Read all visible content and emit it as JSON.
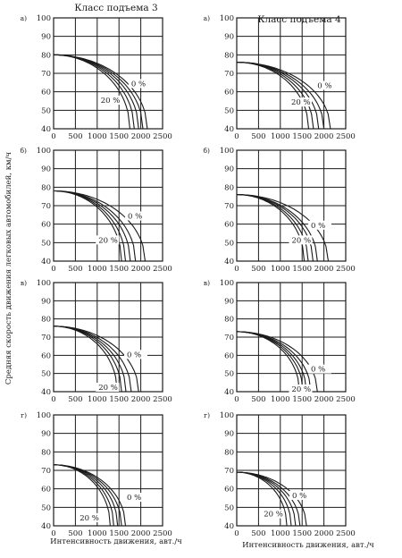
{
  "figure": {
    "col_titles": [
      "Класс подъема 3",
      "Класс подъема 4"
    ],
    "y_axis_label": "Средняя скорость движения легковых автомобилей, км/ч",
    "x_axis_label": "Интенсивность движения, авт./ч",
    "ink_color": "#1a1a1a",
    "background": "#ffffff"
  },
  "chart_data": [
    {
      "type": "line",
      "panel_label": "а)",
      "title": "Класс подъема 3",
      "xlim": [
        0,
        2500
      ],
      "ylim": [
        40,
        100
      ],
      "x_ticks": [
        0,
        500,
        1000,
        1500,
        2000,
        2500
      ],
      "y_ticks": [
        40,
        50,
        60,
        70,
        80,
        90,
        100
      ],
      "grid": true,
      "annotations": [
        {
          "text": "0 %",
          "x": 1780,
          "y": 63
        },
        {
          "text": "20 %",
          "x": 1080,
          "y": 54
        }
      ],
      "series": [
        {
          "v0": 80,
          "x_end": 2150
        },
        {
          "v0": 80,
          "x_end": 2050
        },
        {
          "v0": 80,
          "x_end": 1950
        },
        {
          "v0": 80,
          "x_end": 1850
        },
        {
          "v0": 80,
          "x_end": 1750
        }
      ]
    },
    {
      "type": "line",
      "panel_label": "а)",
      "title": "Класс подъема 4",
      "xlim": [
        0,
        2500
      ],
      "ylim": [
        40,
        100
      ],
      "x_ticks": [
        0,
        500,
        1000,
        1500,
        2000,
        2500
      ],
      "y_ticks": [
        40,
        50,
        60,
        70,
        80,
        90,
        100
      ],
      "grid": true,
      "annotations": [
        {
          "text": "0 %",
          "x": 1850,
          "y": 62
        },
        {
          "text": "20 %",
          "x": 1250,
          "y": 53
        }
      ],
      "series": [
        {
          "v0": 76,
          "x_end": 2150
        },
        {
          "v0": 76,
          "x_end": 2000
        },
        {
          "v0": 76,
          "x_end": 1880
        },
        {
          "v0": 76,
          "x_end": 1760
        },
        {
          "v0": 76,
          "x_end": 1650
        }
      ]
    },
    {
      "type": "line",
      "panel_label": "б)",
      "xlim": [
        0,
        2500
      ],
      "ylim": [
        40,
        100
      ],
      "x_ticks": [
        0,
        500,
        1000,
        1500,
        2000,
        2500
      ],
      "y_ticks": [
        40,
        50,
        60,
        70,
        80,
        90,
        100
      ],
      "grid": true,
      "annotations": [
        {
          "text": "0 %",
          "x": 1700,
          "y": 63
        },
        {
          "text": "20 %",
          "x": 1030,
          "y": 50
        }
      ],
      "series": [
        {
          "v0": 78,
          "x_end": 2100
        },
        {
          "v0": 78,
          "x_end": 1880
        },
        {
          "v0": 78,
          "x_end": 1760
        },
        {
          "v0": 78,
          "x_end": 1650
        },
        {
          "v0": 78,
          "x_end": 1560
        }
      ]
    },
    {
      "type": "line",
      "panel_label": "б)",
      "xlim": [
        0,
        2500
      ],
      "ylim": [
        40,
        100
      ],
      "x_ticks": [
        0,
        500,
        1000,
        1500,
        2000,
        2500
      ],
      "y_ticks": [
        40,
        50,
        60,
        70,
        80,
        90,
        100
      ],
      "grid": true,
      "annotations": [
        {
          "text": "0 %",
          "x": 1700,
          "y": 58
        },
        {
          "text": "20 %",
          "x": 1260,
          "y": 50
        }
      ],
      "series": [
        {
          "v0": 76,
          "x_end": 2100
        },
        {
          "v0": 76,
          "x_end": 1850
        },
        {
          "v0": 76,
          "x_end": 1750
        },
        {
          "v0": 76,
          "x_end": 1640
        },
        {
          "v0": 76,
          "x_end": 1550
        }
      ]
    },
    {
      "type": "line",
      "panel_label": "в)",
      "xlim": [
        0,
        2500
      ],
      "ylim": [
        40,
        100
      ],
      "x_ticks": [
        0,
        500,
        1000,
        1500,
        2000,
        2500
      ],
      "y_ticks": [
        40,
        50,
        60,
        70,
        80,
        90,
        100
      ],
      "grid": true,
      "annotations": [
        {
          "text": "0 %",
          "x": 1680,
          "y": 59
        },
        {
          "text": "20 %",
          "x": 1030,
          "y": 41
        }
      ],
      "series": [
        {
          "v0": 76,
          "x_end": 1950
        },
        {
          "v0": 76,
          "x_end": 1780
        },
        {
          "v0": 76,
          "x_end": 1660
        },
        {
          "v0": 76,
          "x_end": 1560
        },
        {
          "v0": 76,
          "x_end": 1460
        }
      ]
    },
    {
      "type": "line",
      "panel_label": "в)",
      "xlim": [
        0,
        2500
      ],
      "ylim": [
        40,
        100
      ],
      "x_ticks": [
        0,
        500,
        1000,
        1500,
        2000,
        2500
      ],
      "y_ticks": [
        40,
        50,
        60,
        70,
        80,
        90,
        100
      ],
      "grid": true,
      "annotations": [
        {
          "text": "0 %",
          "x": 1700,
          "y": 51
        },
        {
          "text": "20 %",
          "x": 1260,
          "y": 40
        }
      ],
      "series": [
        {
          "v0": 73,
          "x_end": 1850
        },
        {
          "v0": 73,
          "x_end": 1700
        },
        {
          "v0": 73,
          "x_end": 1600
        },
        {
          "v0": 73,
          "x_end": 1520
        },
        {
          "v0": 73,
          "x_end": 1440
        }
      ]
    },
    {
      "type": "line",
      "panel_label": "г)",
      "xlim": [
        0,
        2500
      ],
      "ylim": [
        40,
        100
      ],
      "x_ticks": [
        0,
        500,
        1000,
        1500,
        2000,
        2500
      ],
      "y_ticks": [
        40,
        50,
        60,
        70,
        80,
        90,
        100
      ],
      "grid": true,
      "annotations": [
        {
          "text": "0 %",
          "x": 1680,
          "y": 54
        },
        {
          "text": "20 %",
          "x": 600,
          "y": 43
        }
      ],
      "series": [
        {
          "v0": 73,
          "x_end": 1650
        },
        {
          "v0": 73,
          "x_end": 1560
        },
        {
          "v0": 73,
          "x_end": 1470
        },
        {
          "v0": 73,
          "x_end": 1380
        },
        {
          "v0": 73,
          "x_end": 1300
        }
      ]
    },
    {
      "type": "line",
      "panel_label": "г)",
      "xlim": [
        0,
        2500
      ],
      "ylim": [
        40,
        100
      ],
      "x_ticks": [
        0,
        500,
        1000,
        1500,
        2000,
        2500
      ],
      "y_ticks": [
        40,
        50,
        60,
        70,
        80,
        90,
        100
      ],
      "grid": true,
      "annotations": [
        {
          "text": "0 %",
          "x": 1270,
          "y": 55
        },
        {
          "text": "20 %",
          "x": 620,
          "y": 45
        }
      ],
      "series": [
        {
          "v0": 69,
          "x_end": 1600
        },
        {
          "v0": 69,
          "x_end": 1450
        },
        {
          "v0": 69,
          "x_end": 1350
        },
        {
          "v0": 69,
          "x_end": 1250
        },
        {
          "v0": 69,
          "x_end": 1150
        }
      ]
    }
  ]
}
